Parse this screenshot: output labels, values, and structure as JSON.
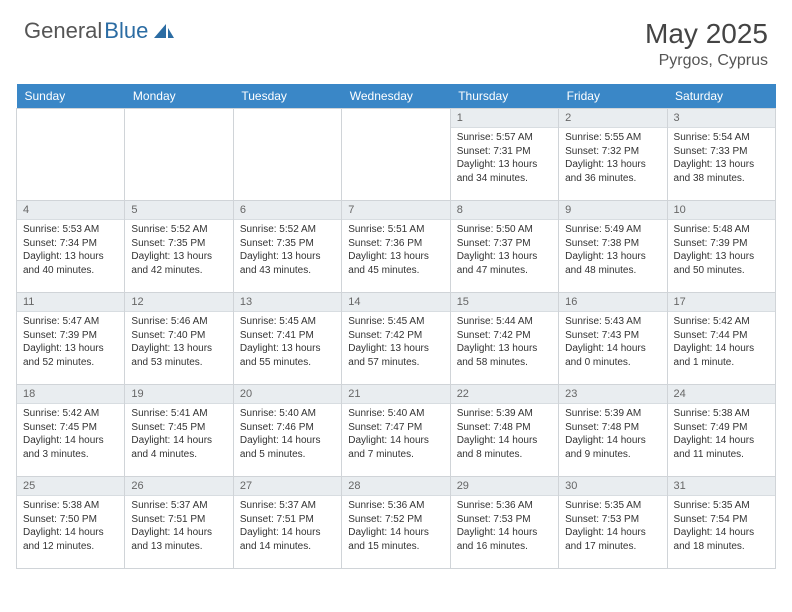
{
  "brand": {
    "text1": "General",
    "text2": "Blue",
    "logo_color": "#2b6ca3"
  },
  "title": "May 2025",
  "location": "Pyrgos, Cyprus",
  "colors": {
    "header_bg": "#3a87c7",
    "header_text": "#ffffff",
    "daynum_bg": "#e9edf0",
    "border": "#d0d4d8",
    "text": "#333333"
  },
  "weekdays": [
    "Sunday",
    "Monday",
    "Tuesday",
    "Wednesday",
    "Thursday",
    "Friday",
    "Saturday"
  ],
  "weeks": [
    [
      {
        "empty": true
      },
      {
        "empty": true
      },
      {
        "empty": true
      },
      {
        "empty": true
      },
      {
        "day": "1",
        "sunrise": "Sunrise: 5:57 AM",
        "sunset": "Sunset: 7:31 PM",
        "daylight": "Daylight: 13 hours and 34 minutes."
      },
      {
        "day": "2",
        "sunrise": "Sunrise: 5:55 AM",
        "sunset": "Sunset: 7:32 PM",
        "daylight": "Daylight: 13 hours and 36 minutes."
      },
      {
        "day": "3",
        "sunrise": "Sunrise: 5:54 AM",
        "sunset": "Sunset: 7:33 PM",
        "daylight": "Daylight: 13 hours and 38 minutes."
      }
    ],
    [
      {
        "day": "4",
        "sunrise": "Sunrise: 5:53 AM",
        "sunset": "Sunset: 7:34 PM",
        "daylight": "Daylight: 13 hours and 40 minutes."
      },
      {
        "day": "5",
        "sunrise": "Sunrise: 5:52 AM",
        "sunset": "Sunset: 7:35 PM",
        "daylight": "Daylight: 13 hours and 42 minutes."
      },
      {
        "day": "6",
        "sunrise": "Sunrise: 5:52 AM",
        "sunset": "Sunset: 7:35 PM",
        "daylight": "Daylight: 13 hours and 43 minutes."
      },
      {
        "day": "7",
        "sunrise": "Sunrise: 5:51 AM",
        "sunset": "Sunset: 7:36 PM",
        "daylight": "Daylight: 13 hours and 45 minutes."
      },
      {
        "day": "8",
        "sunrise": "Sunrise: 5:50 AM",
        "sunset": "Sunset: 7:37 PM",
        "daylight": "Daylight: 13 hours and 47 minutes."
      },
      {
        "day": "9",
        "sunrise": "Sunrise: 5:49 AM",
        "sunset": "Sunset: 7:38 PM",
        "daylight": "Daylight: 13 hours and 48 minutes."
      },
      {
        "day": "10",
        "sunrise": "Sunrise: 5:48 AM",
        "sunset": "Sunset: 7:39 PM",
        "daylight": "Daylight: 13 hours and 50 minutes."
      }
    ],
    [
      {
        "day": "11",
        "sunrise": "Sunrise: 5:47 AM",
        "sunset": "Sunset: 7:39 PM",
        "daylight": "Daylight: 13 hours and 52 minutes."
      },
      {
        "day": "12",
        "sunrise": "Sunrise: 5:46 AM",
        "sunset": "Sunset: 7:40 PM",
        "daylight": "Daylight: 13 hours and 53 minutes."
      },
      {
        "day": "13",
        "sunrise": "Sunrise: 5:45 AM",
        "sunset": "Sunset: 7:41 PM",
        "daylight": "Daylight: 13 hours and 55 minutes."
      },
      {
        "day": "14",
        "sunrise": "Sunrise: 5:45 AM",
        "sunset": "Sunset: 7:42 PM",
        "daylight": "Daylight: 13 hours and 57 minutes."
      },
      {
        "day": "15",
        "sunrise": "Sunrise: 5:44 AM",
        "sunset": "Sunset: 7:42 PM",
        "daylight": "Daylight: 13 hours and 58 minutes."
      },
      {
        "day": "16",
        "sunrise": "Sunrise: 5:43 AM",
        "sunset": "Sunset: 7:43 PM",
        "daylight": "Daylight: 14 hours and 0 minutes."
      },
      {
        "day": "17",
        "sunrise": "Sunrise: 5:42 AM",
        "sunset": "Sunset: 7:44 PM",
        "daylight": "Daylight: 14 hours and 1 minute."
      }
    ],
    [
      {
        "day": "18",
        "sunrise": "Sunrise: 5:42 AM",
        "sunset": "Sunset: 7:45 PM",
        "daylight": "Daylight: 14 hours and 3 minutes."
      },
      {
        "day": "19",
        "sunrise": "Sunrise: 5:41 AM",
        "sunset": "Sunset: 7:45 PM",
        "daylight": "Daylight: 14 hours and 4 minutes."
      },
      {
        "day": "20",
        "sunrise": "Sunrise: 5:40 AM",
        "sunset": "Sunset: 7:46 PM",
        "daylight": "Daylight: 14 hours and 5 minutes."
      },
      {
        "day": "21",
        "sunrise": "Sunrise: 5:40 AM",
        "sunset": "Sunset: 7:47 PM",
        "daylight": "Daylight: 14 hours and 7 minutes."
      },
      {
        "day": "22",
        "sunrise": "Sunrise: 5:39 AM",
        "sunset": "Sunset: 7:48 PM",
        "daylight": "Daylight: 14 hours and 8 minutes."
      },
      {
        "day": "23",
        "sunrise": "Sunrise: 5:39 AM",
        "sunset": "Sunset: 7:48 PM",
        "daylight": "Daylight: 14 hours and 9 minutes."
      },
      {
        "day": "24",
        "sunrise": "Sunrise: 5:38 AM",
        "sunset": "Sunset: 7:49 PM",
        "daylight": "Daylight: 14 hours and 11 minutes."
      }
    ],
    [
      {
        "day": "25",
        "sunrise": "Sunrise: 5:38 AM",
        "sunset": "Sunset: 7:50 PM",
        "daylight": "Daylight: 14 hours and 12 minutes."
      },
      {
        "day": "26",
        "sunrise": "Sunrise: 5:37 AM",
        "sunset": "Sunset: 7:51 PM",
        "daylight": "Daylight: 14 hours and 13 minutes."
      },
      {
        "day": "27",
        "sunrise": "Sunrise: 5:37 AM",
        "sunset": "Sunset: 7:51 PM",
        "daylight": "Daylight: 14 hours and 14 minutes."
      },
      {
        "day": "28",
        "sunrise": "Sunrise: 5:36 AM",
        "sunset": "Sunset: 7:52 PM",
        "daylight": "Daylight: 14 hours and 15 minutes."
      },
      {
        "day": "29",
        "sunrise": "Sunrise: 5:36 AM",
        "sunset": "Sunset: 7:53 PM",
        "daylight": "Daylight: 14 hours and 16 minutes."
      },
      {
        "day": "30",
        "sunrise": "Sunrise: 5:35 AM",
        "sunset": "Sunset: 7:53 PM",
        "daylight": "Daylight: 14 hours and 17 minutes."
      },
      {
        "day": "31",
        "sunrise": "Sunrise: 5:35 AM",
        "sunset": "Sunset: 7:54 PM",
        "daylight": "Daylight: 14 hours and 18 minutes."
      }
    ]
  ]
}
